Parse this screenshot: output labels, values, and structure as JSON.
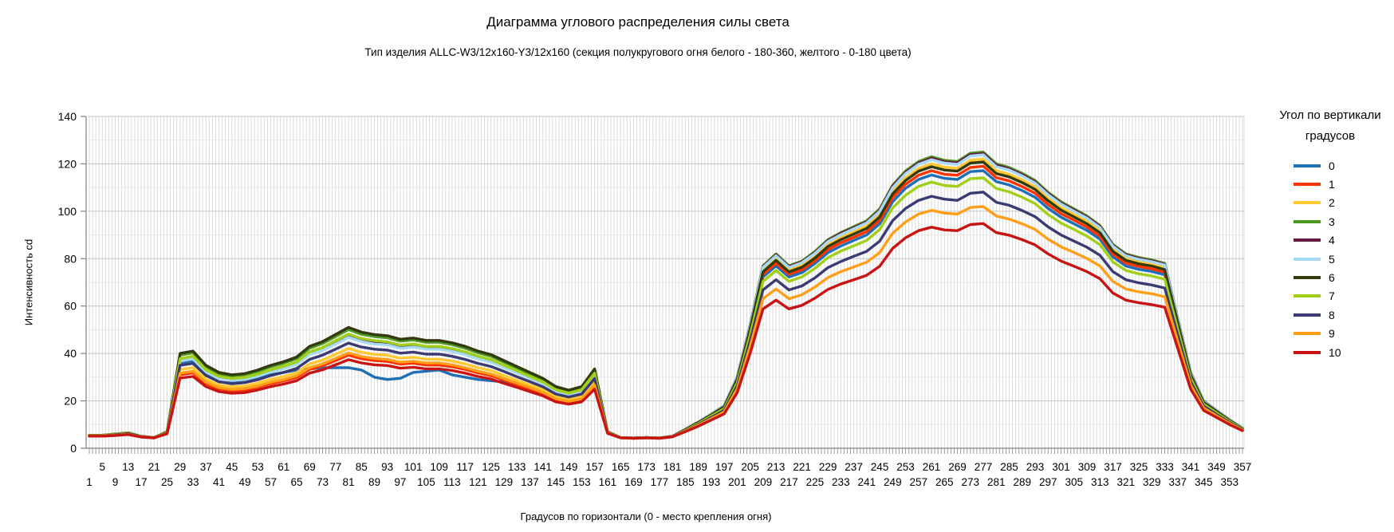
{
  "chart_data": {
    "type": "line",
    "title": "Диаграмма углового распределения силы света",
    "subtitle": "Тип изделия ALLC-W3/12x160-Y3/12x160 (секция полукругового огня белого - 180-360, желтого - 0-180 цвета)",
    "xlabel": "Градусов по горизонтали (0 - место крепления огня)",
    "ylabel": "Интенсивность cd",
    "legend_title_line1": "Угол по вертикали",
    "legend_title_line2": "градусов",
    "legend_position": "right",
    "grid": true,
    "ylim": [
      0,
      140
    ],
    "ytick_step": 20,
    "y_minor_step": 10,
    "yticks": [
      0,
      20,
      40,
      60,
      80,
      100,
      120,
      140
    ],
    "x_range": [
      1,
      357
    ],
    "x_gridline_step": 1,
    "axis_color": "#808080",
    "gridline_color": "#DBDBDB",
    "major_gridline_color": "#C6C6C6",
    "minor_gridline_color": "#E7E7E7",
    "plot_border_color": "#D9D9D9",
    "xticks_row1": [
      5,
      13,
      21,
      29,
      37,
      45,
      53,
      61,
      69,
      77,
      85,
      93,
      101,
      109,
      117,
      125,
      133,
      141,
      149,
      157,
      165,
      173,
      181,
      189,
      197,
      205,
      213,
      221,
      229,
      237,
      245,
      253,
      261,
      269,
      277,
      285,
      293,
      301,
      309,
      317,
      325,
      333,
      341,
      349,
      357
    ],
    "xticks_row2": [
      1,
      9,
      17,
      25,
      33,
      41,
      49,
      57,
      65,
      73,
      81,
      89,
      97,
      105,
      113,
      121,
      129,
      137,
      145,
      153,
      161,
      169,
      177,
      185,
      193,
      201,
      209,
      217,
      225,
      233,
      241,
      249,
      257,
      265,
      273,
      281,
      289,
      297,
      305,
      313,
      321,
      329,
      337,
      345,
      353
    ],
    "x": [
      1,
      5,
      9,
      13,
      17,
      21,
      25,
      29,
      33,
      37,
      41,
      45,
      49,
      53,
      57,
      61,
      65,
      69,
      73,
      77,
      81,
      85,
      89,
      93,
      97,
      101,
      105,
      109,
      113,
      117,
      121,
      125,
      129,
      133,
      137,
      141,
      145,
      149,
      153,
      157,
      161,
      165,
      169,
      173,
      177,
      181,
      185,
      189,
      193,
      197,
      201,
      205,
      209,
      213,
      217,
      221,
      225,
      229,
      233,
      237,
      241,
      245,
      249,
      253,
      257,
      261,
      265,
      269,
      273,
      277,
      281,
      285,
      289,
      293,
      297,
      301,
      305,
      309,
      313,
      317,
      321,
      325,
      329,
      333,
      337,
      341,
      345,
      349,
      353,
      357
    ],
    "series": [
      {
        "name": "0",
        "color": "#1F6FB5",
        "values": [
          5.3,
          5.3,
          5.7,
          6.2,
          4.8,
          4.3,
          6.5,
          36,
          37,
          31,
          28,
          27.5,
          28,
          29.5,
          31,
          32,
          33,
          33.5,
          34,
          34,
          34,
          33,
          30,
          29,
          29.5,
          32,
          32.5,
          33,
          31,
          30,
          29,
          28.5,
          28,
          27,
          26,
          24,
          21.5,
          20.5,
          21.5,
          27,
          6.8,
          4.5,
          4.3,
          4.5,
          4.3,
          4.9,
          7.7,
          10.5,
          13.8,
          17.1,
          28.3,
          48.9,
          72.3,
          76.9,
          72.3,
          74.1,
          77.9,
          82.5,
          85.3,
          87.7,
          90,
          94.7,
          104,
          109.7,
          113.4,
          115.3,
          113.9,
          113.4,
          116.7,
          117.1,
          112.5,
          111.1,
          108.7,
          105.9,
          101.2,
          97.5,
          94.7,
          91.9,
          88.2,
          80.7,
          76.9,
          75.5,
          74.6,
          73.2,
          51.7,
          30.2,
          19,
          15.2,
          11.5,
          8.2
        ]
      },
      {
        "name": "1",
        "color": "#FF3200",
        "values": [
          5.1,
          5.1,
          5.5,
          5.9,
          4.8,
          4.4,
          6.3,
          31,
          31.8,
          27.3,
          25,
          24.3,
          24.6,
          25.8,
          27.3,
          28.4,
          29.9,
          33.3,
          34.8,
          37,
          39.3,
          37.8,
          37,
          36.6,
          35.5,
          35.9,
          35.1,
          35.1,
          34.4,
          33.3,
          31.8,
          30.6,
          28.8,
          26.9,
          25,
          23.1,
          20.5,
          19.4,
          20.5,
          26.1,
          6.9,
          4.5,
          4.3,
          4.5,
          4.3,
          5,
          7.8,
          10.7,
          14,
          17.3,
          28.7,
          49.6,
          73.4,
          78.1,
          73.4,
          75.3,
          79.1,
          83.8,
          86.7,
          89,
          91.4,
          96.2,
          105.7,
          111.4,
          115.2,
          117.1,
          115.6,
          115.2,
          118.5,
          119,
          114.2,
          112.8,
          110.4,
          107.6,
          102.8,
          99,
          96.2,
          93.3,
          89.5,
          81.9,
          78.1,
          76.7,
          75.7,
          74.3,
          52.5,
          30.6,
          19.2,
          15.4,
          11.6,
          8.3
        ]
      },
      {
        "name": "2",
        "color": "#FFC933",
        "values": [
          5.2,
          5.2,
          5.6,
          6,
          4.8,
          4.4,
          6.4,
          33.2,
          34,
          29.1,
          26.7,
          25.9,
          26.3,
          27.5,
          29.1,
          30.3,
          31.9,
          35.6,
          37.2,
          39.6,
          42.1,
          40.5,
          39.6,
          39.2,
          38,
          38.4,
          37.6,
          37.6,
          36.8,
          35.6,
          34,
          32.8,
          30.7,
          28.7,
          26.7,
          24.7,
          21.8,
          20.6,
          21.8,
          27.9,
          6.9,
          4.5,
          4.3,
          4.5,
          4.3,
          5,
          7.9,
          10.8,
          14.2,
          17.7,
          29.4,
          50.8,
          75.2,
          80.1,
          75.2,
          77.1,
          81,
          85.9,
          88.8,
          91.3,
          93.7,
          98.6,
          108.3,
          114.2,
          118.1,
          120,
          118.6,
          118.1,
          121.5,
          122,
          117.1,
          115.6,
          113.2,
          110.3,
          105.4,
          101.5,
          98.6,
          95.7,
          91.8,
          84,
          80.1,
          78.6,
          77.6,
          76.2,
          53.7,
          31.3,
          19.6,
          15.7,
          11.8,
          8.4
        ]
      },
      {
        "name": "3",
        "color": "#4E9A20",
        "values": [
          5.5,
          5.5,
          6,
          6.5,
          5,
          4.5,
          6.9,
          39.3,
          40.3,
          34.4,
          31.4,
          30.5,
          31,
          32.4,
          34.4,
          35.9,
          37.8,
          42.2,
          44.2,
          47.1,
          50.1,
          48.1,
          47.1,
          46.6,
          45.2,
          45.7,
          44.7,
          44.7,
          43.7,
          42.2,
          40.3,
          38.8,
          36.3,
          33.9,
          31.4,
          29,
          25.6,
          24.1,
          25.6,
          32.9,
          7,
          4.5,
          4.3,
          4.5,
          4.3,
          5,
          8,
          11,
          14.5,
          18,
          30,
          52,
          77,
          82,
          77,
          79,
          83,
          88,
          91,
          93.5,
          96,
          101,
          111,
          117,
          121,
          123,
          121.5,
          121,
          124.5,
          125,
          120,
          118.5,
          116,
          113,
          108,
          104,
          101,
          98,
          94,
          86,
          82,
          80.5,
          79.5,
          78,
          55,
          32,
          20,
          16,
          12,
          8.5
        ]
      },
      {
        "name": "4",
        "color": "#671641",
        "values": [
          5.4,
          5.4,
          5.9,
          6.3,
          4.9,
          4.5,
          6.8,
          37.5,
          38.4,
          32.8,
          30,
          29.1,
          29.6,
          31,
          32.8,
          34.2,
          36.1,
          40.3,
          42.1,
          44.9,
          47.7,
          45.9,
          44.9,
          44.5,
          43.1,
          43.5,
          42.6,
          42.6,
          41.7,
          40.3,
          38.4,
          37,
          34.7,
          32.4,
          30,
          27.7,
          24.5,
          23.1,
          24.5,
          31.4,
          7,
          4.5,
          4.3,
          4.5,
          4.3,
          5,
          8,
          11,
          14.4,
          17.9,
          29.9,
          51.8,
          76.6,
          81.6,
          76.6,
          78.6,
          82.6,
          87.6,
          90.6,
          93.1,
          95.5,
          100.5,
          110.5,
          116.4,
          120.4,
          122.4,
          120.9,
          120.4,
          123.9,
          124.4,
          119.4,
          117.9,
          115.4,
          112.4,
          107.5,
          103.5,
          100.5,
          97.5,
          93.6,
          85.6,
          81.6,
          80.1,
          79.1,
          77.6,
          54.7,
          31.9,
          19.9,
          15.9,
          12,
          8.5
        ]
      },
      {
        "name": "5",
        "color": "#A6D9F7",
        "values": [
          5.4,
          5.4,
          5.8,
          6.3,
          4.9,
          4.5,
          6.7,
          36.8,
          37.7,
          32.2,
          29.5,
          28.6,
          29,
          30.4,
          32.2,
          33.6,
          35.4,
          39.5,
          41.3,
          44,
          46.8,
          45,
          44,
          43.6,
          42.2,
          42.7,
          41.8,
          41.8,
          40.9,
          39.5,
          37.7,
          36.3,
          34,
          31.8,
          29.5,
          27.2,
          24,
          22.7,
          24,
          30.8,
          7,
          4.5,
          4.3,
          4.5,
          4.3,
          5,
          8,
          10.9,
          14.4,
          17.9,
          29.7,
          51.5,
          76.3,
          81.2,
          76.3,
          78.3,
          82.2,
          87.2,
          90.1,
          92.6,
          95.1,
          100,
          109.9,
          115.9,
          119.8,
          121.8,
          120.3,
          119.8,
          123.3,
          123.8,
          118.8,
          117.4,
          114.9,
          111.9,
          107,
          103,
          100,
          97.1,
          93.1,
          85.2,
          81.2,
          79.7,
          78.7,
          77.3,
          54.5,
          31.7,
          19.8,
          15.9,
          11.9,
          8.5
        ]
      },
      {
        "name": "6",
        "color": "#333A0E",
        "values": [
          5.5,
          5.5,
          6,
          6.5,
          5,
          4.5,
          7,
          40,
          41,
          35,
          32,
          31,
          31.5,
          33,
          35,
          36.5,
          38.5,
          43,
          45,
          48,
          51,
          49,
          48,
          47.5,
          46,
          46.5,
          45.5,
          45.5,
          44.5,
          43,
          41,
          39.5,
          37,
          34.5,
          32,
          29.5,
          26,
          24.5,
          26,
          33.5,
          6.9,
          4.5,
          4.3,
          4.5,
          4.3,
          5,
          7.9,
          10.8,
          14.1,
          17.5,
          29.1,
          50.3,
          74.4,
          79.3,
          74.4,
          76.4,
          80.2,
          85.1,
          88,
          90.4,
          92.8,
          97.6,
          107.3,
          113,
          116.9,
          118.8,
          117.4,
          116.9,
          120.3,
          120.8,
          115.9,
          114.5,
          112.1,
          109.2,
          104.4,
          100.5,
          97.6,
          94.7,
          90.9,
          83.1,
          79.3,
          77.8,
          76.9,
          75.4,
          53.2,
          31,
          19.4,
          15.6,
          11.7,
          8.3
        ]
      },
      {
        "name": "7",
        "color": "#A2D019",
        "values": [
          5.4,
          5.4,
          5.9,
          6.4,
          4.9,
          4.5,
          6.8,
          37.8,
          38.8,
          33.1,
          30.3,
          29.4,
          29.9,
          31.3,
          33.1,
          34.6,
          36.4,
          40.7,
          42.5,
          45.4,
          48.2,
          46.3,
          45.4,
          44.9,
          43.5,
          44,
          43,
          43,
          42.1,
          40.7,
          38.8,
          37.4,
          35,
          32.7,
          30.3,
          28,
          24.7,
          23.3,
          24.7,
          31.7,
          6.7,
          4.5,
          4.3,
          4.5,
          4.3,
          4.9,
          7.6,
          10.4,
          13.6,
          16.7,
          27.7,
          47.7,
          70.4,
          75,
          70.4,
          72.3,
          75.9,
          80.4,
          83.2,
          85.4,
          87.7,
          92.3,
          101.4,
          106.8,
          110.5,
          112.3,
          110.9,
          110.5,
          113.7,
          114.1,
          109.6,
          108.2,
          105.9,
          103.2,
          98.6,
          95,
          92.3,
          89.5,
          85.9,
          78.6,
          75,
          73.6,
          72.7,
          71.3,
          50.4,
          29.5,
          18.6,
          14.9,
          11.3,
          8.1
        ]
      },
      {
        "name": "8",
        "color": "#3B3B74",
        "values": [
          5.3,
          5.3,
          5.7,
          6.2,
          4.9,
          4.4,
          6.6,
          35,
          35.8,
          30.7,
          28.1,
          27.2,
          27.7,
          28.9,
          30.7,
          32,
          33.7,
          37.5,
          39.3,
          41.8,
          44.4,
          42.7,
          41.8,
          41.4,
          40.1,
          40.6,
          39.7,
          39.7,
          38.8,
          37.5,
          35.8,
          34.5,
          32.4,
          30.2,
          28.1,
          25.9,
          22.9,
          21.6,
          22.9,
          29.4,
          6.6,
          4.4,
          4.3,
          4.4,
          4.3,
          4.9,
          7.4,
          10,
          13,
          16,
          26.4,
          45.3,
          66.8,
          71.1,
          66.8,
          68.5,
          71.9,
          76.2,
          78.8,
          81,
          83.1,
          87.4,
          96,
          101.2,
          104.6,
          106.3,
          105.1,
          104.6,
          107.6,
          108.1,
          103.8,
          102.5,
          100.3,
          97.7,
          93.4,
          90,
          87.4,
          84.8,
          81.4,
          74.5,
          71.1,
          69.8,
          68.9,
          67.6,
          47.9,
          28.1,
          17.8,
          14.3,
          10.9,
          7.9
        ]
      },
      {
        "name": "9",
        "color": "#FF9E18",
        "values": [
          5.2,
          5.2,
          5.5,
          5.9,
          4.8,
          4.4,
          6.3,
          31.7,
          32.5,
          27.9,
          25.6,
          24.8,
          25.2,
          26.3,
          27.9,
          29,
          30.6,
          34,
          35.6,
          37.9,
          40.2,
          38.7,
          37.9,
          37.5,
          36.3,
          36.7,
          36,
          36,
          35.2,
          34,
          32.5,
          31.3,
          29.4,
          27.5,
          25.6,
          23.6,
          20.9,
          19.8,
          20.9,
          26.7,
          6.4,
          4.4,
          4.2,
          4.4,
          4.2,
          4.8,
          7.2,
          9.7,
          12.5,
          15.3,
          25.1,
          42.9,
          63.1,
          67.2,
          63.1,
          64.8,
          68,
          72,
          74.5,
          76.5,
          78.5,
          82.6,
          90.7,
          95.5,
          98.8,
          100.4,
          99.2,
          98.8,
          101.6,
          102,
          98,
          96.7,
          94.7,
          92.3,
          88.2,
          85,
          82.6,
          80.1,
          76.9,
          70.4,
          67.2,
          66,
          65.2,
          63.9,
          45.3,
          26.7,
          17,
          13.7,
          10.5,
          7.6
        ]
      },
      {
        "name": "10",
        "color": "#C91414",
        "values": [
          5.1,
          5.1,
          5.4,
          5.8,
          4.7,
          4.4,
          6.1,
          29.6,
          30.3,
          26,
          23.9,
          23.2,
          23.5,
          24.6,
          26,
          27.1,
          28.5,
          31.7,
          33.1,
          35.2,
          37.4,
          36,
          35.2,
          34.9,
          33.8,
          34.2,
          33.5,
          33.5,
          32.8,
          31.7,
          30.3,
          29.2,
          27.4,
          25.7,
          23.9,
          22.1,
          19.6,
          18.6,
          19.6,
          24.9,
          6.3,
          4.4,
          4.2,
          4.4,
          4.2,
          4.8,
          7,
          9.3,
          11.9,
          14.5,
          23.5,
          40,
          58.8,
          62.5,
          58.8,
          60.3,
          63.3,
          67,
          69.3,
          71.1,
          73,
          76.8,
          84.3,
          88.8,
          91.8,
          93.3,
          92.1,
          91.8,
          94.4,
          94.8,
          91,
          89.9,
          88,
          85.8,
          82,
          79,
          76.8,
          74.5,
          71.5,
          65.5,
          62.5,
          61.4,
          60.6,
          59.5,
          42.3,
          25,
          16,
          13,
          10,
          7.4
        ]
      }
    ]
  }
}
